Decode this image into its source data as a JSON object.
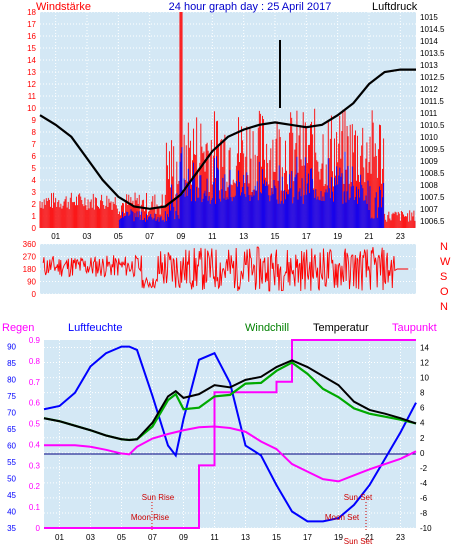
{
  "title": "24 hour graph day : 25 April 2017",
  "colors": {
    "plot_bg": "#d4e8f5",
    "wind": "#ff0000",
    "gust": "#0000ff",
    "pressure": "#000000",
    "humidity": "#0000ff",
    "windchill": "#00aa00",
    "temperature": "#000000",
    "dewpoint": "#ff00ff",
    "rain": "#ff00ff",
    "wind_dir": "#ff0000",
    "sun_moon": "#cc0000"
  },
  "chart_data": [
    {
      "type": "bar",
      "label_left": "Windstärke",
      "label_right": "Luftdruck",
      "y_left_ticks": [
        "0",
        "1",
        "2",
        "3",
        "4",
        "5",
        "6",
        "7",
        "8",
        "9",
        "10",
        "11",
        "12",
        "13",
        "14",
        "15",
        "16",
        "17",
        "18"
      ],
      "y_left_range": [
        0,
        18
      ],
      "y_right_ticks": [
        "1006.5",
        "1007",
        "1007.5",
        "1008",
        "1008.5",
        "1009",
        "1009.5",
        "1010",
        "1010.5",
        "1011",
        "1011.5",
        "1012",
        "1012.5",
        "1013",
        "1013.5",
        "1014",
        "1014.5",
        "1015"
      ],
      "y_right_range": [
        1006.2,
        1015.2
      ],
      "x_ticks": [
        "01",
        "03",
        "05",
        "07",
        "09",
        "11",
        "13",
        "15",
        "17",
        "19",
        "21",
        "23"
      ],
      "x_range": [
        0,
        24
      ],
      "pressure": {
        "x": [
          0,
          1,
          2,
          3,
          4,
          5,
          6,
          7,
          8,
          9,
          10,
          11,
          12,
          13,
          14,
          15,
          16,
          17,
          18,
          19,
          20,
          21,
          22,
          23,
          24
        ],
        "y": [
          1010.9,
          1010.5,
          1010.0,
          1009.1,
          1008.2,
          1007.5,
          1007.1,
          1007.0,
          1007.1,
          1007.6,
          1008.5,
          1009.4,
          1010.0,
          1010.3,
          1010.5,
          1010.6,
          1010.5,
          1010.4,
          1010.5,
          1010.9,
          1011.4,
          1012.2,
          1012.7,
          1012.8,
          1012.8
        ]
      }
    },
    {
      "type": "scatter",
      "label_right": [
        "N",
        "W",
        "S",
        "O",
        "N"
      ],
      "y_ticks": [
        "0",
        "90",
        "180",
        "270",
        "360"
      ],
      "y_range": [
        0,
        360
      ],
      "x_range": [
        0,
        24
      ]
    },
    {
      "type": "line",
      "labels": {
        "rain": "Regen",
        "humidity": "Luftfeuchte",
        "windchill": "Windchill",
        "temperature": "Temperatur",
        "dewpoint": "Taupunkt"
      },
      "rain_ticks": [
        "0",
        "0.1",
        "0.2",
        "0.3",
        "0.4",
        "0.5",
        "0.6",
        "0.7",
        "0.8",
        "0.9"
      ],
      "rain_range": [
        0,
        0.9
      ],
      "humidity_ticks": [
        "35",
        "40",
        "45",
        "50",
        "55",
        "60",
        "65",
        "70",
        "75",
        "80",
        "85",
        "90"
      ],
      "humidity_range": [
        35,
        92
      ],
      "temp_ticks": [
        "-10",
        "-8",
        "-6",
        "-4",
        "-2",
        "0",
        "2",
        "4",
        "6",
        "8",
        "10",
        "12",
        "14"
      ],
      "temp_range": [
        -10,
        15
      ],
      "x_ticks": [
        "01",
        "03",
        "05",
        "07",
        "09",
        "11",
        "13",
        "15",
        "17",
        "19",
        "21",
        "23"
      ],
      "x_range": [
        0,
        24
      ],
      "temperature": {
        "x": [
          0,
          1,
          2,
          3,
          4,
          5,
          5.5,
          6,
          7,
          8,
          8.5,
          9,
          10,
          11,
          12,
          13,
          14,
          15,
          16,
          17,
          18,
          19,
          20,
          21,
          22,
          23,
          24
        ],
        "y": [
          4.6,
          4.2,
          3.6,
          3.0,
          2.3,
          1.8,
          1.7,
          1.8,
          4.0,
          7.5,
          8.2,
          7.3,
          7.8,
          9.0,
          8.7,
          9.7,
          10.1,
          11.4,
          12.3,
          11.4,
          10.2,
          9.0,
          6.8,
          5.7,
          5.2,
          4.6,
          3.9
        ]
      },
      "windchill": {
        "x": [
          0,
          1,
          2,
          3,
          4,
          5,
          5.5,
          6,
          7,
          8,
          8.5,
          9,
          10,
          11,
          12,
          13,
          14,
          15,
          16,
          17,
          18,
          19,
          20,
          21,
          22,
          23,
          24
        ],
        "y": [
          4.6,
          4.2,
          3.6,
          3.0,
          2.3,
          1.8,
          1.7,
          1.8,
          3.5,
          7.0,
          7.8,
          5.8,
          6.0,
          7.5,
          7.7,
          9.2,
          9.3,
          10.9,
          12.0,
          10.5,
          8.5,
          7.4,
          5.9,
          5.2,
          4.8,
          4.4,
          3.9
        ]
      },
      "dewpoint": {
        "x": [
          0,
          1,
          2,
          3,
          4,
          5,
          5.5,
          6,
          7,
          8,
          9,
          10,
          11,
          12,
          13,
          14,
          15,
          16,
          17,
          18,
          19,
          20,
          21,
          22,
          23,
          24
        ],
        "y": [
          1.0,
          1.0,
          1.0,
          0.8,
          0.4,
          -0.1,
          -0.2,
          0.8,
          1.9,
          2.5,
          3.0,
          3.4,
          3.5,
          3.3,
          2.8,
          1.5,
          0.5,
          -1.5,
          -2.5,
          -3.5,
          -3.8,
          -3.0,
          -2.2,
          -1.5,
          -0.8,
          0.2
        ]
      },
      "humidity": {
        "x": [
          0,
          1,
          2,
          3,
          4,
          5,
          5.5,
          6,
          7,
          8,
          8.5,
          9,
          10,
          11,
          12,
          13,
          14,
          15,
          16,
          17,
          18,
          19,
          20,
          21,
          22,
          23,
          24
        ],
        "y": [
          71,
          72,
          76,
          84,
          88,
          90,
          90,
          89,
          75,
          60,
          57,
          68,
          86,
          88,
          79,
          60,
          57,
          48,
          40,
          37,
          37,
          38,
          42,
          48,
          56,
          64,
          73
        ]
      },
      "rain": {
        "x": [
          0,
          10,
          10,
          11,
          11,
          15,
          15,
          16,
          16,
          24
        ],
        "y": [
          0,
          0,
          0.3,
          0.3,
          0.65,
          0.65,
          0.7,
          0.7,
          0.9,
          0.9
        ]
      },
      "annotations": {
        "sun_rise": "Sun Rise",
        "moon_rise": "Moon Rise",
        "sun_set": "Sun Set",
        "moon_set": "Moon Set",
        "sun_set_2": "Sun Set"
      }
    }
  ]
}
